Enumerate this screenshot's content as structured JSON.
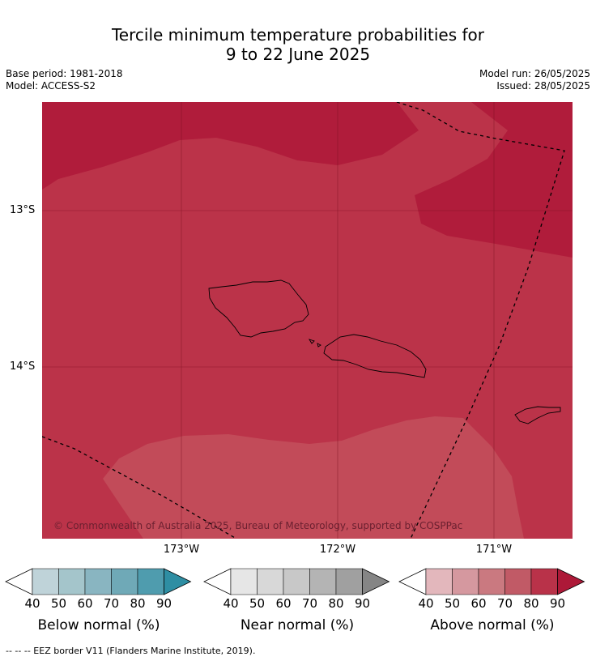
{
  "title_line1": "Tercile minimum temperature probabilities for",
  "title_line2": "9 to 22 June 2025",
  "base_period": "Base period: 1981-2018",
  "model": "Model: ACCESS-S2",
  "model_run": "Model run: 26/05/2025",
  "issued": "Issued: 28/05/2025",
  "lat_labels": [
    "13°S",
    "14°S"
  ],
  "lon_labels": [
    "173°W",
    "172°W",
    "171°W"
  ],
  "copyright": "© Commonwealth of Australia 2025, Bureau of Meteorology, supported by COSPPac",
  "colorbars": [
    {
      "label": "Below normal (%)",
      "ticks": [
        "40",
        "50",
        "60",
        "70",
        "80",
        "90"
      ],
      "colors": [
        "#bfd3d9",
        "#a4c5cb",
        "#89b5c1",
        "#6fa9b7",
        "#4f9cae",
        "#2e8ea3"
      ]
    },
    {
      "label": "Near normal (%)",
      "ticks": [
        "40",
        "50",
        "60",
        "70",
        "80",
        "90"
      ],
      "colors": [
        "#e6e6e6",
        "#d8d8d8",
        "#c8c8c8",
        "#b4b4b4",
        "#a0a0a0",
        "#858585"
      ]
    },
    {
      "label": "Above normal (%)",
      "ticks": [
        "40",
        "50",
        "60",
        "70",
        "80",
        "90"
      ],
      "colors": [
        "#e3b7bc",
        "#d5989f",
        "#ca7980",
        "#c15a66",
        "#b93249",
        "#ad1938"
      ]
    }
  ],
  "footer": "-- -- -- EEZ border V11 (Flanders Marine Institute, 2019).",
  "map_colors": {
    "p90": "#b01c3b",
    "p80": "#bb3349",
    "p70": "#c24b59"
  }
}
